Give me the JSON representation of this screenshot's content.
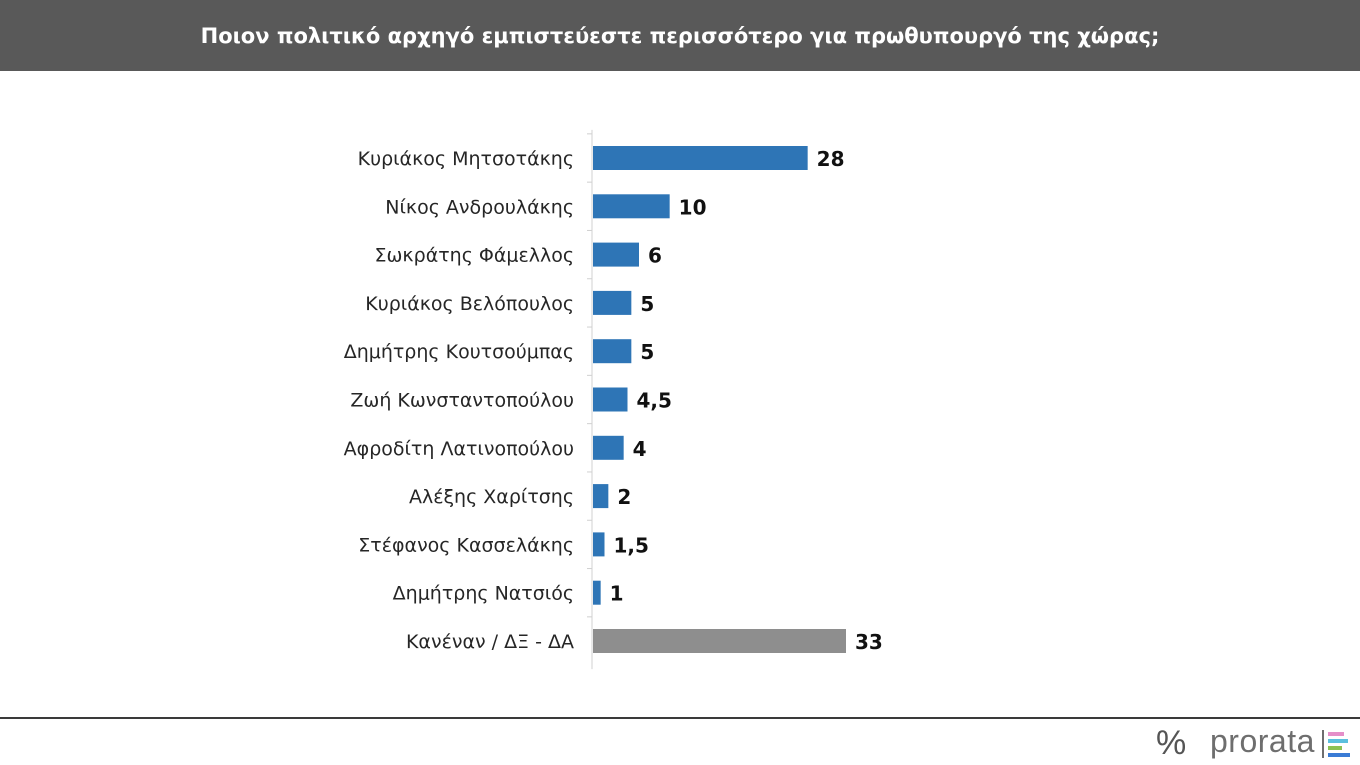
{
  "title": "Ποιον πολιτικό αρχηγό εμπιστεύεστε περισσότερο για πρωθυπουργό της χώρας;",
  "logo": {
    "symbol": "%",
    "text": "prorata",
    "bar_colors": [
      "#e58fc9",
      "#5bc0de",
      "#8cc152",
      "#3a7bd5"
    ]
  },
  "colors": {
    "bar": "#2e75b6",
    "bar_none": "#8e8e8e",
    "header_bg": "#595959"
  },
  "chart_data": {
    "type": "bar",
    "orientation": "horizontal",
    "categories": [
      "Κυριάκος Μητσοτάκης",
      "Νίκος Ανδρουλάκης",
      "Σωκράτης Φάμελλος",
      "Κυριάκος Βελόπουλος",
      "Δημήτρης Κουτσούμπας",
      "Ζωή Κωνσταντοπούλου",
      "Αφροδίτη Λατινοπούλου",
      "Αλέξης Χαρίτσης",
      "Στέφανος Κασσελάκης",
      "Δημήτρης Νατσιός",
      "Κανέναν / ΔΞ - ΔΑ"
    ],
    "values": [
      28,
      10,
      6,
      5,
      5,
      4.5,
      4,
      2,
      1.5,
      1,
      33
    ],
    "labels": [
      "28",
      "10",
      "6",
      "5",
      "5",
      "4,5",
      "4",
      "2",
      "1,5",
      "1",
      "33"
    ],
    "highlight_last": true,
    "xlim": [
      0,
      33
    ],
    "grid": false,
    "legend": "none"
  }
}
